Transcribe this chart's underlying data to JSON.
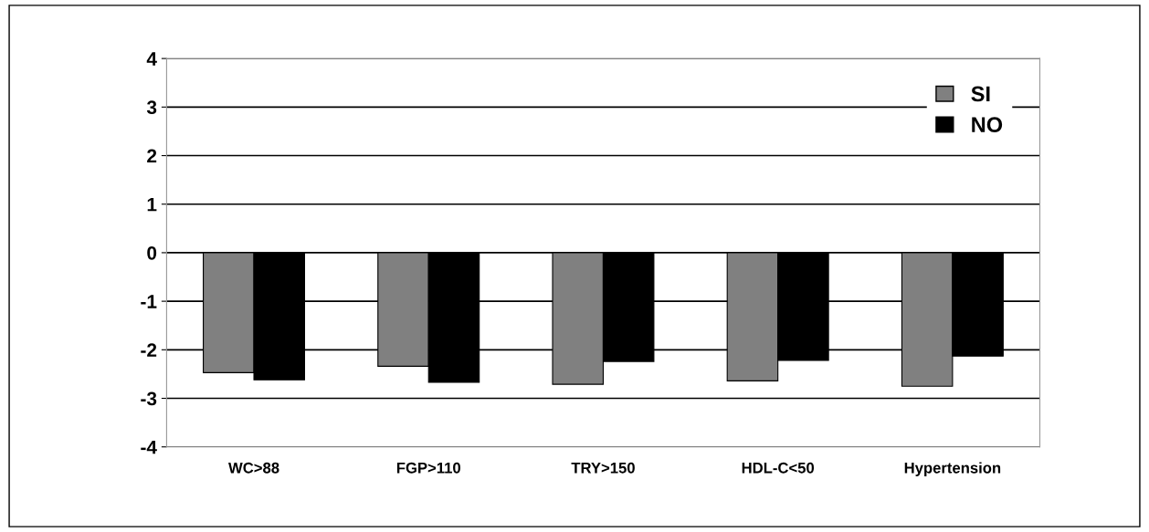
{
  "chart_data": {
    "type": "bar",
    "categories": [
      "WC>88",
      "FGP>110",
      "TRY>150",
      "HDL-C<50",
      "Hypertension"
    ],
    "series": [
      {
        "name": "SI",
        "color": "#808080",
        "values": [
          -2.47,
          -2.34,
          -2.71,
          -2.64,
          -2.75
        ]
      },
      {
        "name": "NO",
        "color": "#000000",
        "values": [
          -2.62,
          -2.67,
          -2.24,
          -2.22,
          -2.13
        ]
      }
    ],
    "ylim": [
      -4,
      4
    ],
    "yticks": [
      -4,
      -3,
      -2,
      -1,
      0,
      1,
      2,
      3,
      4
    ],
    "grid": "y",
    "legend": "top right"
  }
}
